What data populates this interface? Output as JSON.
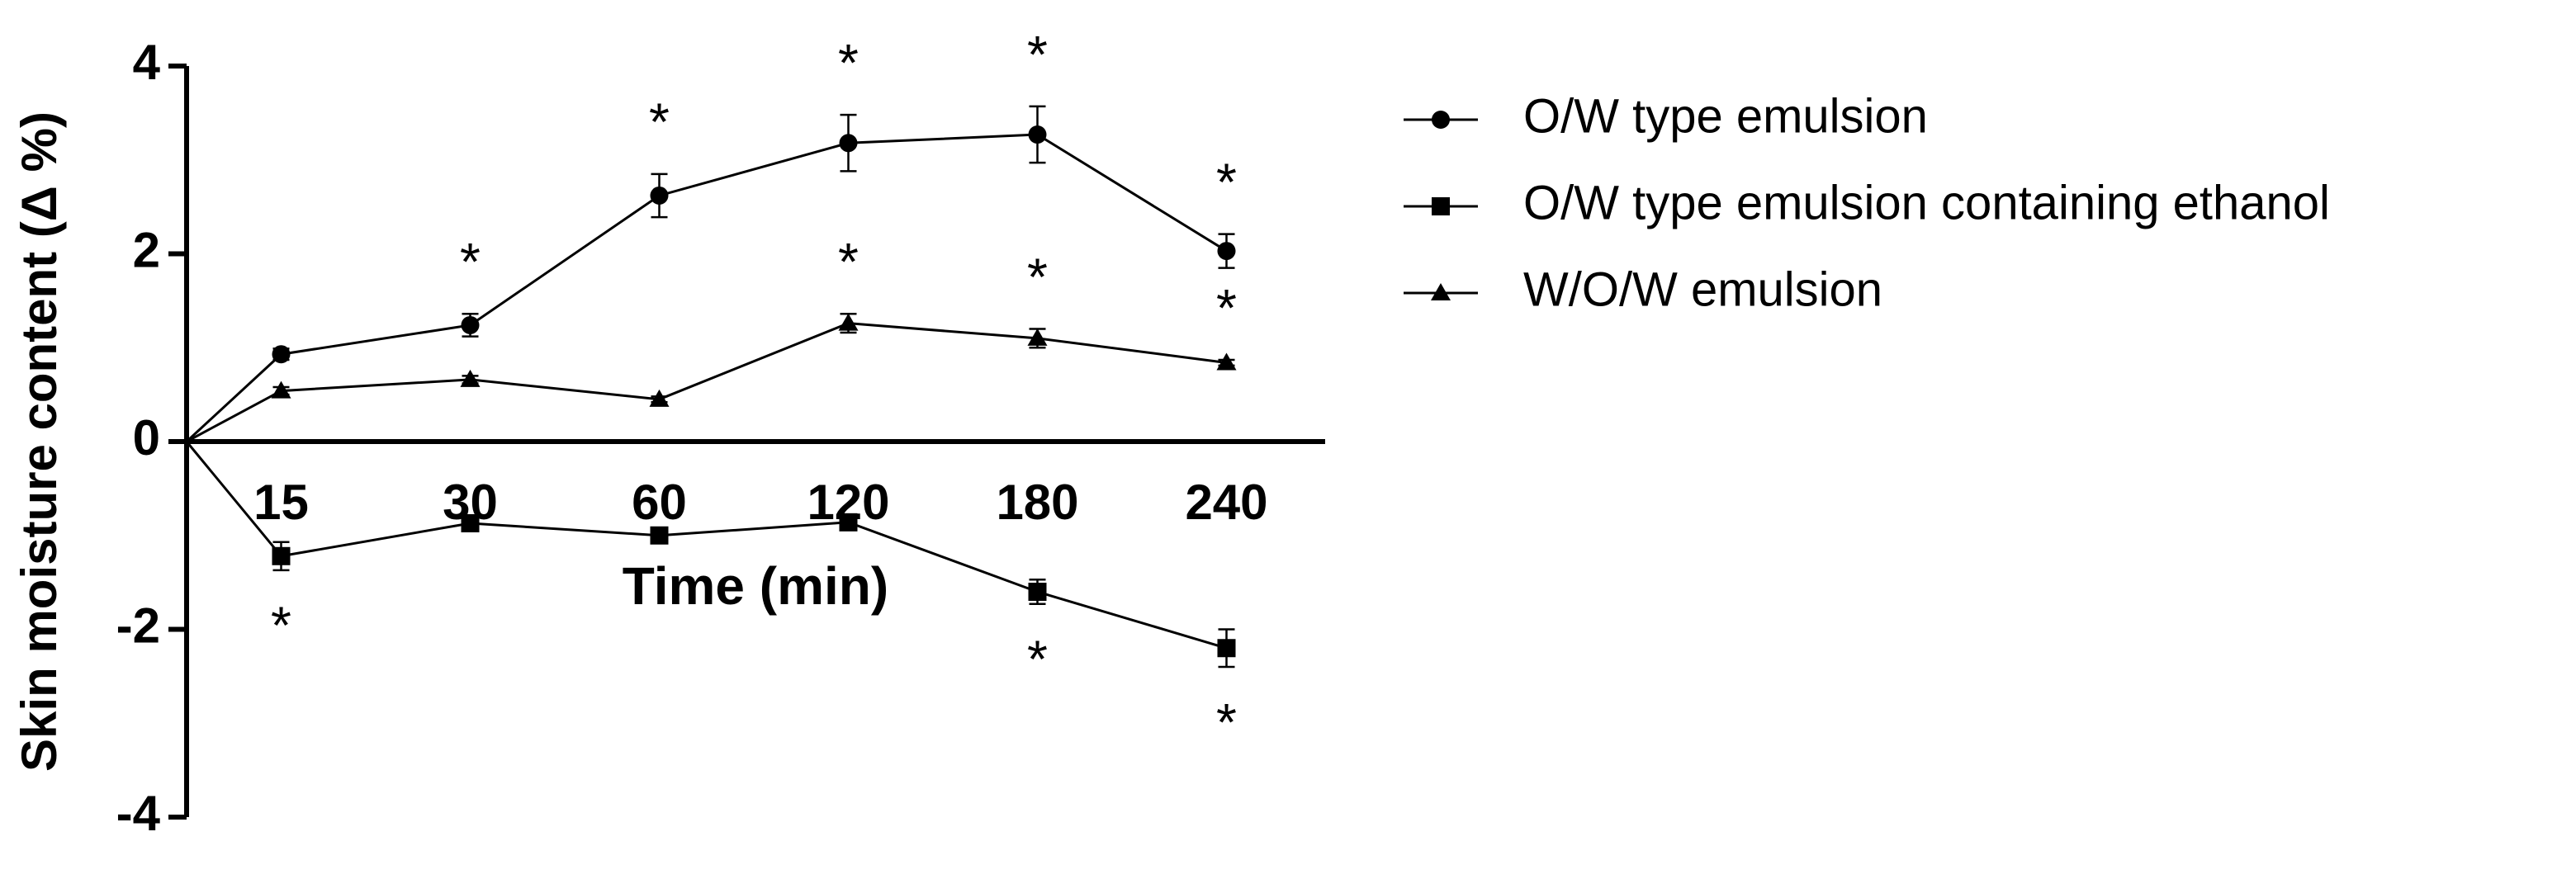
{
  "chart_data": {
    "type": "line",
    "x_label": "Time (min)",
    "y_label": "Skin moisture content  (Δ %)",
    "categories": [
      null,
      "15",
      "30",
      "60",
      "120",
      "180",
      "240"
    ],
    "ylim": [
      -4,
      4
    ],
    "yticks": [
      -4,
      -2,
      0,
      2,
      4
    ],
    "legend": "right",
    "series": [
      {
        "name": "O/W type emulsion",
        "color": "#000000",
        "marker": "circle",
        "values": [
          0,
          0.93,
          1.24,
          2.62,
          3.18,
          3.27,
          2.03
        ],
        "errors": [
          null,
          0.06,
          0.12,
          0.23,
          0.3,
          0.3,
          0.18
        ],
        "significance": [
          null,
          null,
          "*",
          "*",
          "*",
          "*",
          "*"
        ]
      },
      {
        "name": "O/W type emulsion containing ethanol",
        "color": "#000000",
        "marker": "square",
        "values": [
          0,
          -1.22,
          -0.87,
          -1.0,
          -0.86,
          -1.6,
          -2.2
        ],
        "errors": [
          null,
          0.15,
          0.05,
          0.07,
          0.05,
          0.13,
          0.2
        ],
        "significance": [
          null,
          "*",
          null,
          null,
          null,
          "*",
          "*"
        ]
      },
      {
        "name": "W/O/W emulsion",
        "color": "#000000",
        "marker": "triangle",
        "values": [
          0,
          0.54,
          0.66,
          0.45,
          1.26,
          1.1,
          0.84
        ],
        "errors": [
          null,
          0.04,
          0.04,
          0.03,
          0.1,
          0.1,
          0.03
        ],
        "significance": [
          null,
          null,
          null,
          null,
          "*",
          "*",
          "*"
        ]
      }
    ]
  }
}
